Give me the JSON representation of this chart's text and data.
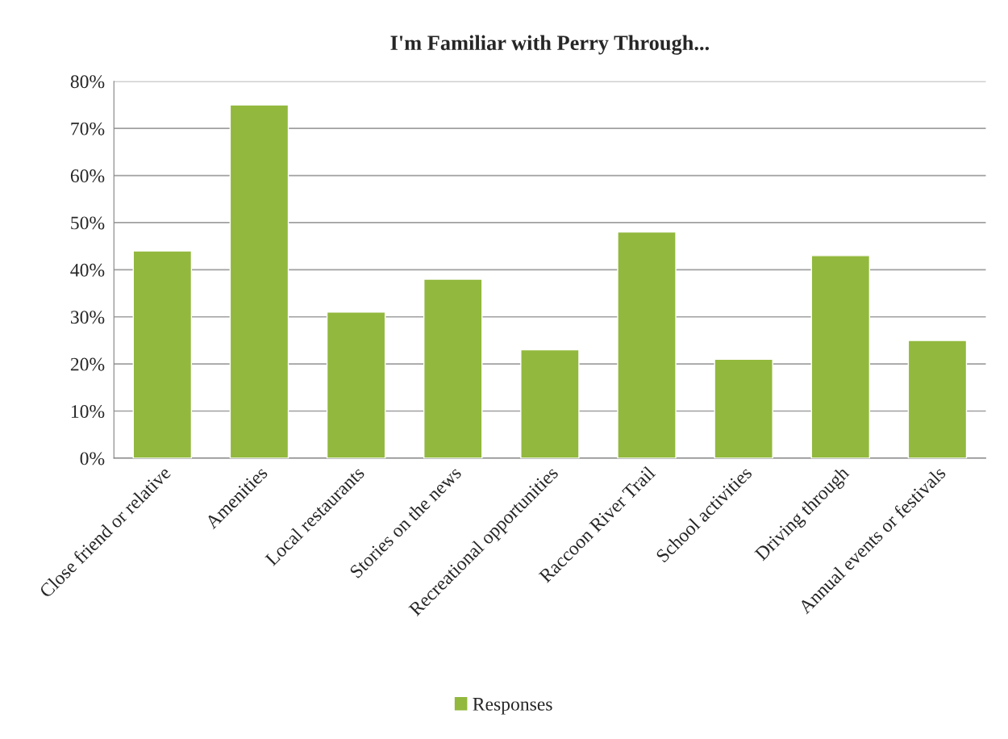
{
  "chart_data": {
    "type": "bar",
    "title": "I'm Familiar with Perry Through...",
    "categories": [
      "Close friend or relative",
      "Amenities",
      "Local restaurants",
      "Stories on the news",
      "Recreational opportunities",
      "Raccoon River Trail",
      "School activities",
      "Driving through",
      "Annual events or festivals"
    ],
    "series": [
      {
        "name": "Responses",
        "color": "#92b83d",
        "values": [
          44,
          75,
          31,
          38,
          23,
          48,
          21,
          43,
          25
        ]
      }
    ],
    "ylim": [
      0,
      80
    ],
    "yticks": [
      {
        "value": 0,
        "label": "0%"
      },
      {
        "value": 10,
        "label": "10%"
      },
      {
        "value": 20,
        "label": "20%"
      },
      {
        "value": 30,
        "label": "30%"
      },
      {
        "value": 40,
        "label": "40%"
      },
      {
        "value": 50,
        "label": "50%"
      },
      {
        "value": 60,
        "label": "60%"
      },
      {
        "value": 70,
        "label": "70%"
      },
      {
        "value": 80,
        "label": "80%"
      }
    ],
    "grid": "y",
    "legend": "bottom"
  }
}
